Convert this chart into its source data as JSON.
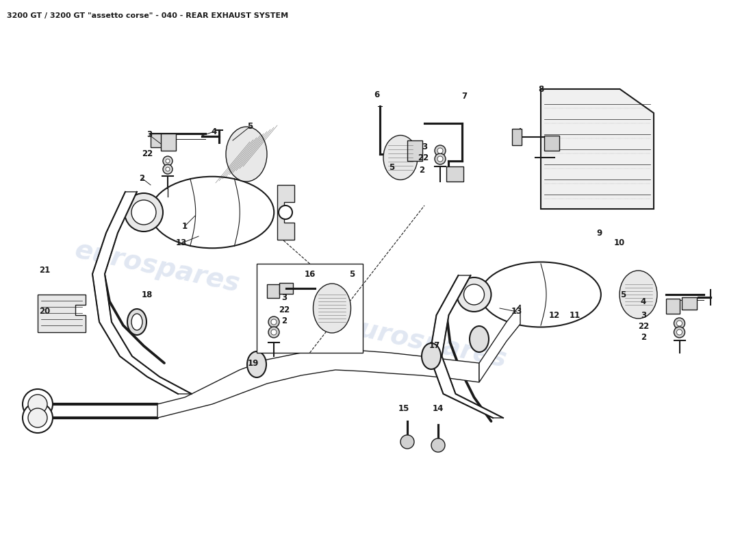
{
  "title": "3200 GT / 3200 GT \"assetto corse\" - 040 - REAR EXHAUST SYSTEM",
  "title_fontsize": 8,
  "bg_color": "#ffffff",
  "line_color": "#1a1a1a",
  "watermark_color": "#c8d4e8",
  "watermark_text": "eurospares",
  "fig_width": 11.0,
  "fig_height": 8.0,
  "dpi": 100
}
